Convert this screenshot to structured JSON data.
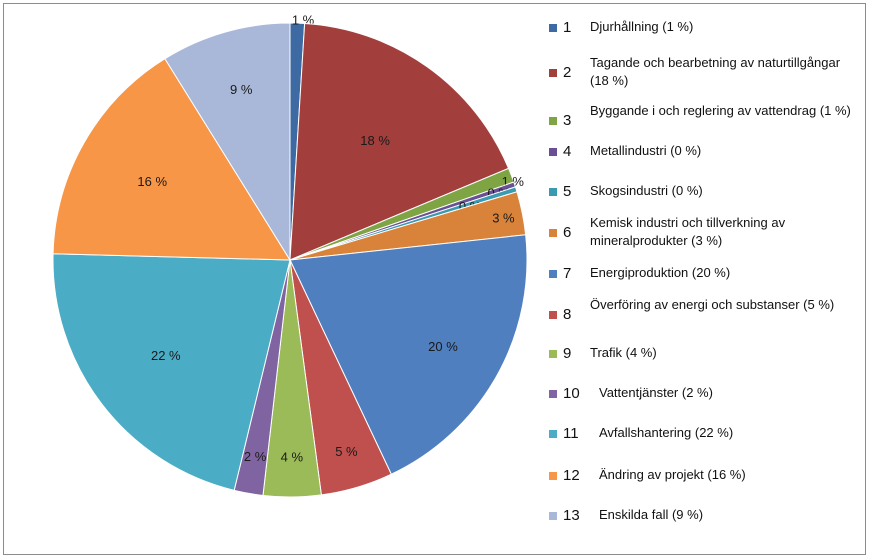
{
  "chart_data": {
    "type": "pie",
    "categories": [
      "Djurhållning (1 %)",
      "Tagande och bearbetning av naturtillgångar (18 %)",
      "Byggande i och reglering av vattendrag (1 %)",
      "Metallindustri (0 %)",
      "Skogsindustri (0 %)",
      "Kemisk industri och tillverkning av mineralprodukter (3 %)",
      "Energiproduktion (20 %)",
      "Överföring av energi och substanser (5 %)",
      "Trafik (4 %)",
      "Vattentjänster (2 %)",
      "Avfallshantering (22 %)",
      "Ändring av projekt (16 %)",
      "Enskilda fall (9 %)"
    ],
    "numbers": [
      "1",
      "2",
      "3",
      "4",
      "5",
      "6",
      "7",
      "8",
      "9",
      "10",
      "11",
      "12",
      "13"
    ],
    "values": [
      1,
      18,
      1,
      0,
      0,
      3,
      20,
      5,
      4,
      2,
      22,
      16,
      9
    ],
    "value_labels": [
      "1 %",
      "18 %",
      "1 %",
      "0 %",
      "0 %",
      "3 %",
      "20 %",
      "5 %",
      "4 %",
      "2 %",
      "22 %",
      "16 %",
      "9 %"
    ],
    "colors": [
      "#3d6aa3",
      "#a23f3d",
      "#7fa443",
      "#6b4f95",
      "#3a9ab0",
      "#d9833a",
      "#4f7fbf",
      "#c0504d",
      "#9bbb59",
      "#8064a2",
      "#4bacc6",
      "#f79646",
      "#a9b8d9"
    ],
    "legend_position": "right"
  }
}
